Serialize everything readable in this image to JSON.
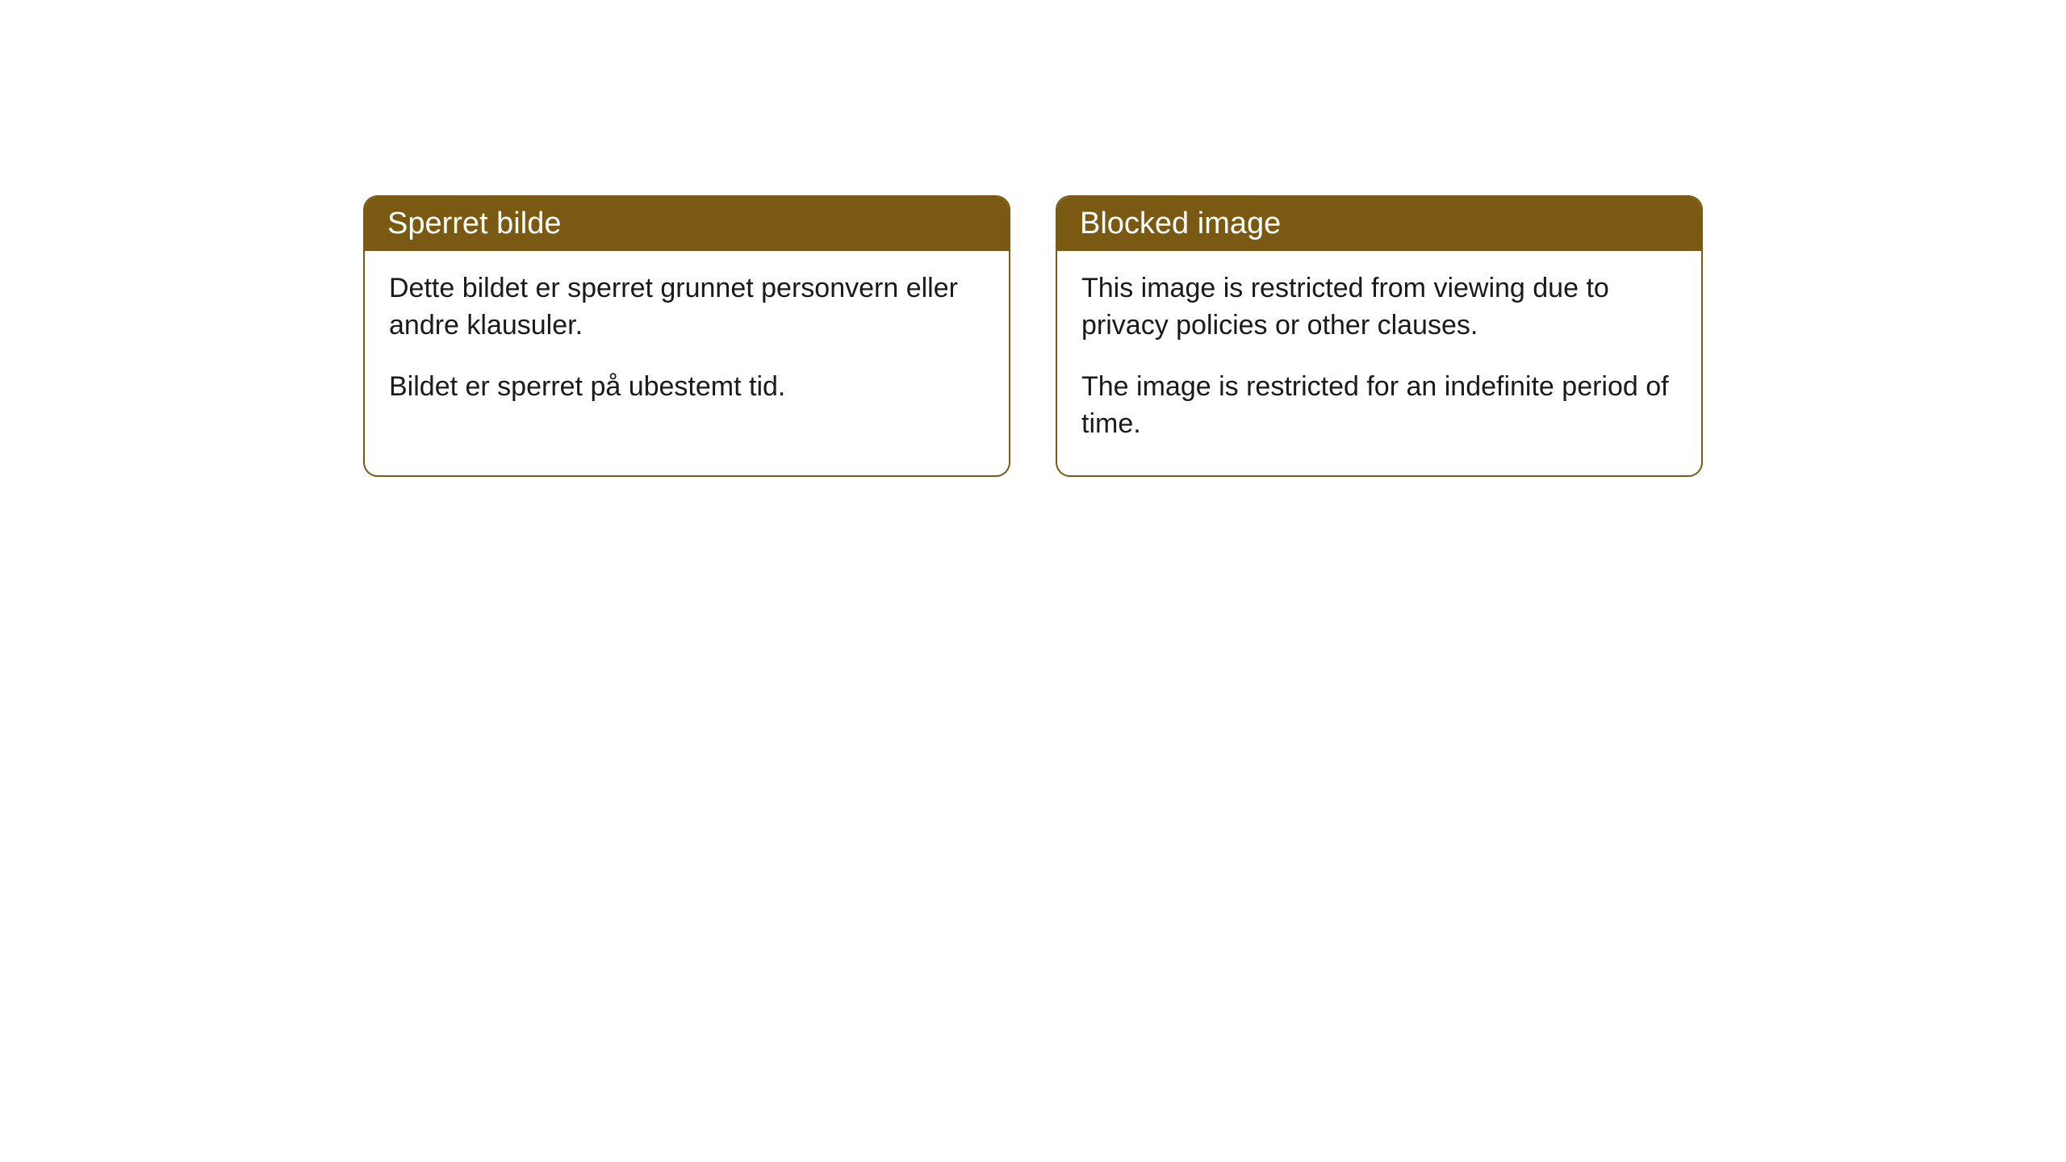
{
  "cards": [
    {
      "title": "Sperret bilde",
      "paragraph1": "Dette bildet er sperret grunnet personvern eller andre klausuler.",
      "paragraph2": "Bildet er sperret på ubestemt tid."
    },
    {
      "title": "Blocked image",
      "paragraph1": "This image is restricted from viewing due to privacy policies or other clauses.",
      "paragraph2": "The image is restricted for an indefinite period of time."
    }
  ],
  "styling": {
    "header_background_color": "#7a5a12",
    "header_text_color": "#ffffff",
    "border_color": "#7a5a12",
    "body_text_color": "#1a1a1a",
    "card_background_color": "#ffffff",
    "page_background_color": "#ffffff",
    "border_radius": 18,
    "header_fontsize": 38,
    "body_fontsize": 34
  }
}
